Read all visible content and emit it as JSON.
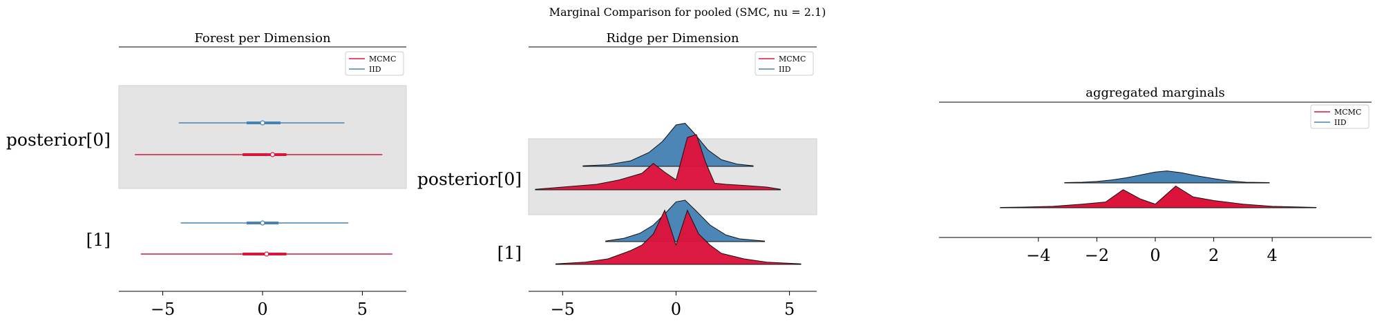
{
  "figure": {
    "suptitle": "Marginal Comparison for pooled (SMC, nu = 2.1)"
  },
  "colors": {
    "MCMC": "#dc143c",
    "IID": "#4682b4",
    "shade": "#e4e4e4",
    "axis": "#000000"
  },
  "chart_data": [
    {
      "type": "forest",
      "title": "Forest per Dimension",
      "xlim": [
        -7.2,
        7.2
      ],
      "xticks": [
        -5,
        0,
        5
      ],
      "xtick_labels": [
        "−5",
        "0",
        "5"
      ],
      "ylabels": [
        "posterior[0]",
        "[1]"
      ],
      "legend": [
        "MCMC",
        "IID"
      ],
      "legend_position": "top-right",
      "shaded_rows": [
        0
      ],
      "rows": [
        {
          "label": "posterior[0]",
          "IID": {
            "low": -4.2,
            "q1": -0.8,
            "median": 0.0,
            "q3": 0.9,
            "high": 4.1
          },
          "MCMC": {
            "low": -6.4,
            "q1": -1.0,
            "median": 0.5,
            "q3": 1.2,
            "high": 6.0
          }
        },
        {
          "label": "[1]",
          "IID": {
            "low": -4.1,
            "q1": -0.8,
            "median": 0.0,
            "q3": 0.8,
            "high": 4.3
          },
          "MCMC": {
            "low": -6.1,
            "q1": -1.0,
            "median": 0.2,
            "q3": 1.2,
            "high": 6.5
          }
        }
      ]
    },
    {
      "type": "ridge",
      "title": "Ridge per Dimension",
      "xlim": [
        -6.5,
        6.2
      ],
      "xticks": [
        -5,
        0,
        5
      ],
      "xtick_labels": [
        "−5",
        "0",
        "5"
      ],
      "ylabels": [
        "posterior[0]",
        "[1]"
      ],
      "legend": [
        "MCMC",
        "IID"
      ],
      "legend_position": "top-right",
      "shaded_rows": [
        0
      ],
      "rows": [
        {
          "label": "posterior[0]",
          "IID": {
            "x": [
              -4.1,
              -3.0,
              -2.0,
              -1.2,
              -0.6,
              0.0,
              0.4,
              0.8,
              1.4,
              2.0,
              2.7,
              3.4
            ],
            "density": [
              0.01,
              0.03,
              0.1,
              0.25,
              0.45,
              0.75,
              0.78,
              0.6,
              0.3,
              0.12,
              0.04,
              0.01
            ]
          },
          "MCMC": {
            "x": [
              -6.2,
              -5.0,
              -3.5,
              -2.5,
              -1.5,
              -1.0,
              -0.5,
              0.0,
              0.5,
              0.9,
              1.3,
              1.7,
              2.2,
              3.0,
              4.0,
              4.6
            ],
            "density": [
              0.01,
              0.05,
              0.1,
              0.18,
              0.3,
              0.48,
              0.32,
              0.18,
              0.95,
              1.0,
              0.5,
              0.12,
              0.1,
              0.08,
              0.05,
              0.01
            ]
          }
        },
        {
          "label": "[1]",
          "IID": {
            "x": [
              -3.1,
              -2.3,
              -1.6,
              -1.0,
              -0.5,
              0.0,
              0.4,
              0.9,
              1.5,
              2.2,
              2.8,
              3.9
            ],
            "density": [
              0.01,
              0.06,
              0.15,
              0.3,
              0.5,
              0.72,
              0.75,
              0.55,
              0.3,
              0.12,
              0.05,
              0.01
            ]
          },
          "MCMC": {
            "x": [
              -5.3,
              -4.0,
              -3.0,
              -2.0,
              -1.5,
              -1.0,
              -0.5,
              0.0,
              0.5,
              1.0,
              1.5,
              2.0,
              3.0,
              4.0,
              5.5
            ],
            "density": [
              0.01,
              0.04,
              0.1,
              0.25,
              0.35,
              0.55,
              0.98,
              0.35,
              0.98,
              0.55,
              0.35,
              0.2,
              0.1,
              0.04,
              0.01
            ]
          }
        }
      ]
    },
    {
      "type": "area",
      "title": "aggregated marginals",
      "xlim": [
        -7.4,
        7.4
      ],
      "xticks": [
        -4,
        -2,
        0,
        2,
        4
      ],
      "xtick_labels": [
        "−4",
        "−2",
        "0",
        "2",
        "4"
      ],
      "legend": [
        "MCMC",
        "IID"
      ],
      "legend_position": "top-right",
      "series": [
        {
          "name": "IID",
          "x": [
            -3.1,
            -2.5,
            -2.0,
            -1.5,
            -1.0,
            -0.5,
            0.0,
            0.4,
            0.9,
            1.4,
            2.0,
            2.5,
            3.1,
            3.9
          ],
          "density": [
            0.005,
            0.01,
            0.02,
            0.04,
            0.07,
            0.11,
            0.15,
            0.165,
            0.14,
            0.1,
            0.06,
            0.03,
            0.01,
            0.005
          ]
        },
        {
          "name": "MCMC",
          "x": [
            -5.3,
            -4.5,
            -3.5,
            -2.5,
            -1.7,
            -1.1,
            -0.5,
            0.0,
            0.7,
            1.3,
            2.0,
            3.0,
            4.0,
            5.5
          ],
          "density": [
            0.005,
            0.01,
            0.02,
            0.05,
            0.08,
            0.25,
            0.12,
            0.05,
            0.3,
            0.15,
            0.1,
            0.05,
            0.02,
            0.005
          ]
        }
      ]
    }
  ]
}
